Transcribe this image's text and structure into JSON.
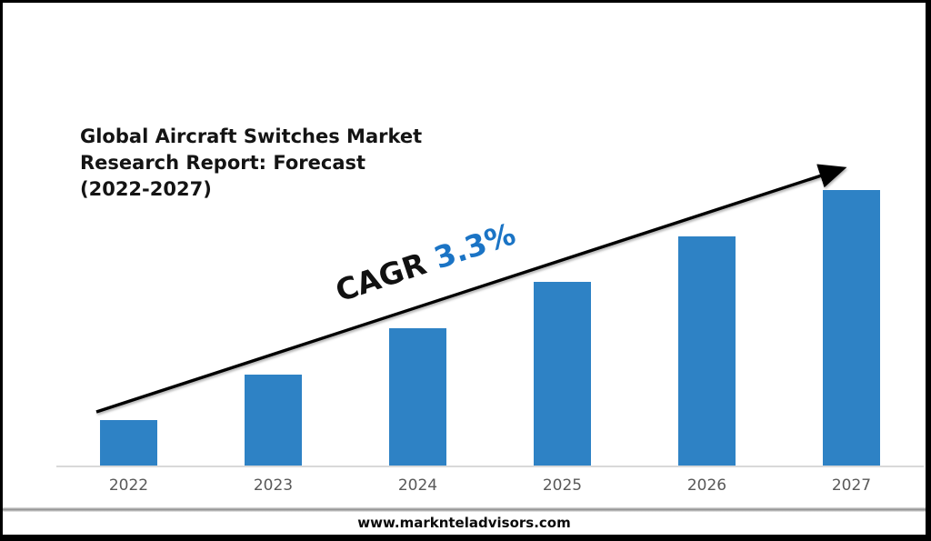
{
  "slide": {
    "title_lines": [
      "Global Aircraft Switches Market",
      "Research Report: Forecast",
      "(2022-2027)"
    ],
    "footer_url": "www.marknteladvisors.com"
  },
  "annotation": {
    "label": "CAGR",
    "value": "3.3%"
  },
  "colors": {
    "bar": "#2E82C5",
    "cagr_value": "#1B74C5",
    "arrow": "#000000",
    "axis_line": "#D9D9D9",
    "tick_label": "#595959"
  },
  "chart_data": {
    "type": "bar",
    "title": "Global Aircraft Switches Market Research Report: Forecast (2022-2027)",
    "categories": [
      "2022",
      "2023",
      "2024",
      "2025",
      "2026",
      "2027"
    ],
    "values": [
      1,
      2,
      3,
      4,
      5,
      6
    ],
    "values_note": "no y-axis or data labels shown; bar heights rise linearly year over year",
    "xlabel": "",
    "ylabel": "",
    "y_axis_shown": false,
    "gridlines": false,
    "legend": null,
    "bar_color": "#2E82C5",
    "annotations": [
      "CAGR 3.3%"
    ],
    "trend_arrow": {
      "from_category": "2022",
      "to_category": "2027",
      "color": "#000000"
    }
  }
}
